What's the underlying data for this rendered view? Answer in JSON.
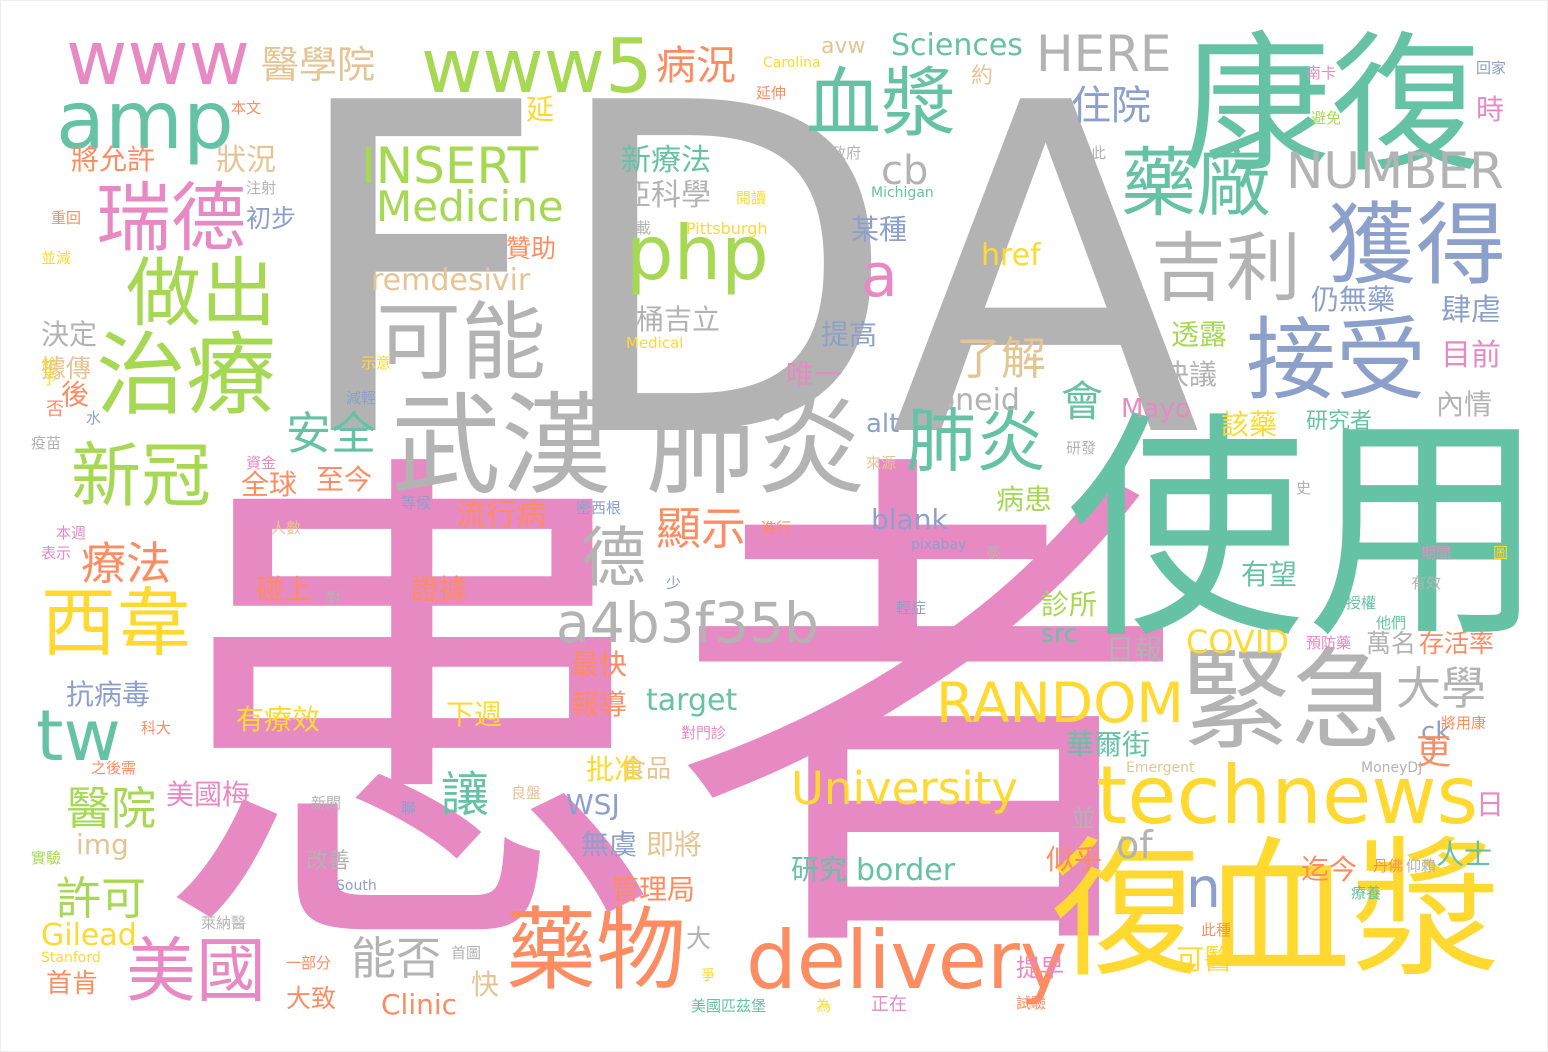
{
  "palette": {
    "pink": "#e78ac3",
    "gray": "#b3b3b3",
    "teal": "#66c2a5",
    "yellow": "#ffd92f",
    "orange": "#fc8d62",
    "green": "#a6d854",
    "blue": "#8da0cb",
    "tan": "#e5c494"
  },
  "words": [
    {
      "text": "FDA",
      "color": "gray"
    },
    {
      "text": "患者",
      "color": "pink"
    },
    {
      "text": "使用",
      "color": "teal"
    },
    {
      "text": "康復",
      "color": "teal"
    },
    {
      "text": "復血漿",
      "color": "yellow"
    },
    {
      "text": "武漢 肺炎",
      "color": "gray"
    },
    {
      "text": "緊急",
      "color": "gray"
    },
    {
      "text": "technews",
      "color": "yellow"
    },
    {
      "text": "藥物",
      "color": "orange"
    },
    {
      "text": "delivery",
      "color": "orange"
    },
    {
      "text": "接受",
      "color": "blue"
    },
    {
      "text": "獲得",
      "color": "blue"
    },
    {
      "text": "治療",
      "color": "green"
    },
    {
      "text": "血漿",
      "color": "teal"
    },
    {
      "text": "可能",
      "color": "gray"
    },
    {
      "text": "www5",
      "color": "green"
    },
    {
      "text": "amp",
      "color": "teal"
    },
    {
      "text": "www",
      "color": "pink"
    },
    {
      "text": "瑞德",
      "color": "pink"
    },
    {
      "text": "做出",
      "color": "green"
    },
    {
      "text": "php",
      "color": "green"
    },
    {
      "text": "藥廠",
      "color": "teal"
    },
    {
      "text": "吉利",
      "color": "gray"
    },
    {
      "text": "西韋",
      "color": "yellow"
    },
    {
      "text": "新冠",
      "color": "green"
    },
    {
      "text": "美國",
      "color": "pink"
    },
    {
      "text": "肺炎",
      "color": "teal"
    },
    {
      "text": "a4b3f35b",
      "color": "gray"
    },
    {
      "text": "RANDOM",
      "color": "yellow"
    },
    {
      "text": "INSERT",
      "color": "green"
    },
    {
      "text": "Medicine",
      "color": "green"
    },
    {
      "text": "NUMBER",
      "color": "gray"
    },
    {
      "text": "HERE",
      "color": "gray"
    },
    {
      "text": "University",
      "color": "yellow"
    },
    {
      "text": "德",
      "color": "gray"
    },
    {
      "text": "a",
      "color": "pink"
    },
    {
      "text": "n",
      "color": "blue"
    },
    {
      "text": "tw",
      "color": "teal"
    },
    {
      "text": "療法",
      "color": "orange"
    },
    {
      "text": "醫院",
      "color": "green"
    },
    {
      "text": "顯示",
      "color": "orange"
    },
    {
      "text": "大學",
      "color": "gray"
    },
    {
      "text": "能否",
      "color": "gray"
    },
    {
      "text": "許可",
      "color": "green"
    },
    {
      "text": "讓",
      "color": "teal"
    },
    {
      "text": "安全",
      "color": "teal"
    },
    {
      "text": "了解",
      "color": "tan"
    },
    {
      "text": "醫學院",
      "color": "tan"
    },
    {
      "text": "病況",
      "color": "orange"
    },
    {
      "text": "住院",
      "color": "blue"
    },
    {
      "text": "cb",
      "color": "gray"
    },
    {
      "text": "remdesivir",
      "color": "tan"
    },
    {
      "text": "zoneid",
      "color": "gray"
    },
    {
      "text": "會",
      "color": "teal"
    },
    {
      "text": "COVID",
      "color": "yellow"
    },
    {
      "text": "Sciences",
      "color": "teal"
    },
    {
      "text": "avw",
      "color": "tan"
    },
    {
      "text": "新療法",
      "color": "teal"
    },
    {
      "text": "亞科學",
      "color": "gray"
    },
    {
      "text": "桶吉立",
      "color": "gray"
    },
    {
      "text": "將允許",
      "color": "orange"
    },
    {
      "text": "狀況",
      "color": "tan"
    },
    {
      "text": "初步",
      "color": "blue"
    },
    {
      "text": "贊助",
      "color": "orange"
    },
    {
      "text": "某種",
      "color": "blue"
    },
    {
      "text": "href",
      "color": "yellow"
    },
    {
      "text": "仍無藥",
      "color": "blue"
    },
    {
      "text": "肆虐",
      "color": "blue"
    },
    {
      "text": "決定",
      "color": "gray"
    },
    {
      "text": "據傳",
      "color": "tan"
    },
    {
      "text": "提高",
      "color": "blue"
    },
    {
      "text": "透露",
      "color": "green"
    },
    {
      "text": "目前",
      "color": "pink"
    },
    {
      "text": "唯一",
      "color": "pink"
    },
    {
      "text": "決議",
      "color": "gray"
    },
    {
      "text": "內情",
      "color": "gray"
    },
    {
      "text": "Mayo",
      "color": "pink"
    },
    {
      "text": "該藥",
      "color": "yellow"
    },
    {
      "text": "研究者",
      "color": "teal"
    },
    {
      "text": "alt",
      "color": "blue"
    },
    {
      "text": "全球",
      "color": "orange"
    },
    {
      "text": "至今",
      "color": "orange"
    },
    {
      "text": "病患",
      "color": "green"
    },
    {
      "text": "流行病",
      "color": "orange"
    },
    {
      "text": "blank",
      "color": "blue"
    },
    {
      "text": "有望",
      "color": "teal"
    },
    {
      "text": "碰上",
      "color": "orange"
    },
    {
      "text": "證據",
      "color": "orange"
    },
    {
      "text": "診所",
      "color": "green"
    },
    {
      "text": "src",
      "color": "teal"
    },
    {
      "text": "日報",
      "color": "gray"
    },
    {
      "text": "萬名",
      "color": "gray"
    },
    {
      "text": "存活率",
      "color": "orange"
    },
    {
      "text": "抗病毒",
      "color": "blue"
    },
    {
      "text": "最快",
      "color": "orange"
    },
    {
      "text": "報導",
      "color": "orange"
    },
    {
      "text": "target",
      "color": "teal"
    },
    {
      "text": "有療效",
      "color": "yellow"
    },
    {
      "text": "下週",
      "color": "yellow"
    },
    {
      "text": "華爾街",
      "color": "teal"
    },
    {
      "text": "ck",
      "color": "blue"
    },
    {
      "text": "食品",
      "color": "tan"
    },
    {
      "text": "批准",
      "color": "yellow"
    },
    {
      "text": "美國梅",
      "color": "pink"
    },
    {
      "text": "WSJ",
      "color": "blue"
    },
    {
      "text": "img",
      "color": "tan"
    },
    {
      "text": "無虞",
      "color": "blue"
    },
    {
      "text": "即將",
      "color": "tan"
    },
    {
      "text": "of",
      "color": "gray"
    },
    {
      "text": "研究",
      "color": "teal"
    },
    {
      "text": "border",
      "color": "teal"
    },
    {
      "text": "似乎",
      "color": "orange"
    },
    {
      "text": "迄今",
      "color": "orange"
    },
    {
      "text": "人士",
      "color": "teal"
    },
    {
      "text": "管理局",
      "color": "orange"
    },
    {
      "text": "Gilead",
      "color": "yellow"
    },
    {
      "text": "首肯",
      "color": "orange"
    },
    {
      "text": "大致",
      "color": "orange"
    },
    {
      "text": "快",
      "color": "tan"
    },
    {
      "text": "Clinic",
      "color": "orange"
    },
    {
      "text": "可醫",
      "color": "yellow"
    },
    {
      "text": "提早",
      "color": "pink"
    },
    {
      "text": "改善",
      "color": "gray"
    },
    {
      "text": "更",
      "color": "orange"
    },
    {
      "text": "並",
      "color": "gray"
    },
    {
      "text": "大",
      "color": "gray"
    },
    {
      "text": "日",
      "color": "pink"
    },
    {
      "text": "時",
      "color": "pink"
    },
    {
      "text": "延",
      "color": "yellow"
    },
    {
      "text": "約",
      "color": "tan"
    },
    {
      "text": "後",
      "color": "orange"
    },
    {
      "text": "Pittsburgh",
      "color": "yellow"
    },
    {
      "text": "轉載",
      "color": "gray"
    },
    {
      "text": "閱讀",
      "color": "yellow"
    },
    {
      "text": "Michigan",
      "color": "teal"
    },
    {
      "text": "邦政府",
      "color": "gray"
    },
    {
      "text": "藉此",
      "color": "gray"
    },
    {
      "text": "南卡",
      "color": "pink"
    },
    {
      "text": "避免",
      "color": "green"
    },
    {
      "text": "回家",
      "color": "blue"
    },
    {
      "text": "Carolina",
      "color": "yellow"
    },
    {
      "text": "延伸",
      "color": "orange"
    },
    {
      "text": "本文",
      "color": "orange"
    },
    {
      "text": "注射",
      "color": "gray"
    },
    {
      "text": "重回",
      "color": "orange"
    },
    {
      "text": "並減",
      "color": "yellow"
    },
    {
      "text": "給予",
      "color": "yellow"
    },
    {
      "text": "示意",
      "color": "yellow"
    },
    {
      "text": "Medical",
      "color": "yellow"
    },
    {
      "text": "減輕",
      "color": "blue"
    },
    {
      "text": "水",
      "color": "blue"
    },
    {
      "text": "否",
      "color": "orange"
    },
    {
      "text": "疫苗",
      "color": "gray"
    },
    {
      "text": "資金",
      "color": "pink"
    },
    {
      "text": "來源",
      "color": "tan"
    },
    {
      "text": "研發",
      "color": "gray"
    },
    {
      "text": "史",
      "color": "gray"
    },
    {
      "text": "等候",
      "color": "blue"
    },
    {
      "text": "密西根",
      "color": "blue"
    },
    {
      "text": "進行",
      "color": "orange"
    },
    {
      "text": "本週",
      "color": "pink"
    },
    {
      "text": "表示",
      "color": "pink"
    },
    {
      "text": "人數",
      "color": "tan"
    },
    {
      "text": "pixabay",
      "color": "blue"
    },
    {
      "text": "期間",
      "color": "pink"
    },
    {
      "text": "授權",
      "color": "teal"
    },
    {
      "text": "有效",
      "color": "gray"
    },
    {
      "text": "他們",
      "color": "teal"
    },
    {
      "text": "預防藥",
      "color": "pink"
    },
    {
      "text": "科大",
      "color": "orange"
    },
    {
      "text": "對",
      "color": "gray"
    },
    {
      "text": "少",
      "color": "blue"
    },
    {
      "text": "輕症",
      "color": "blue"
    },
    {
      "text": "對門診",
      "color": "pink"
    },
    {
      "text": "將用康",
      "color": "orange"
    },
    {
      "text": "之後需",
      "color": "orange"
    },
    {
      "text": "Emergent",
      "color": "tan"
    },
    {
      "text": "MoneyDJ",
      "color": "gray"
    },
    {
      "text": "新聞",
      "color": "gray"
    },
    {
      "text": "聯",
      "color": "blue"
    },
    {
      "text": "良盤",
      "color": "tan"
    },
    {
      "text": "實驗",
      "color": "green"
    },
    {
      "text": "South",
      "color": "blue"
    },
    {
      "text": "丹佛",
      "color": "orange"
    },
    {
      "text": "療養",
      "color": "teal"
    },
    {
      "text": "仰賴",
      "color": "gray"
    },
    {
      "text": "此種",
      "color": "orange"
    },
    {
      "text": "Stanford",
      "color": "yellow"
    },
    {
      "text": "萊納醫",
      "color": "gray"
    },
    {
      "text": "一部分",
      "color": "orange"
    },
    {
      "text": "首圖",
      "color": "gray"
    },
    {
      "text": "美國匹茲堡",
      "color": "teal"
    },
    {
      "text": "為",
      "color": "yellow"
    },
    {
      "text": "正在",
      "color": "pink"
    },
    {
      "text": "試驗",
      "color": "orange"
    },
    {
      "text": "爭",
      "color": "yellow"
    },
    {
      "text": "圖",
      "color": "yellow"
    },
    {
      "text": "藥",
      "color": "gray"
    }
  ]
}
